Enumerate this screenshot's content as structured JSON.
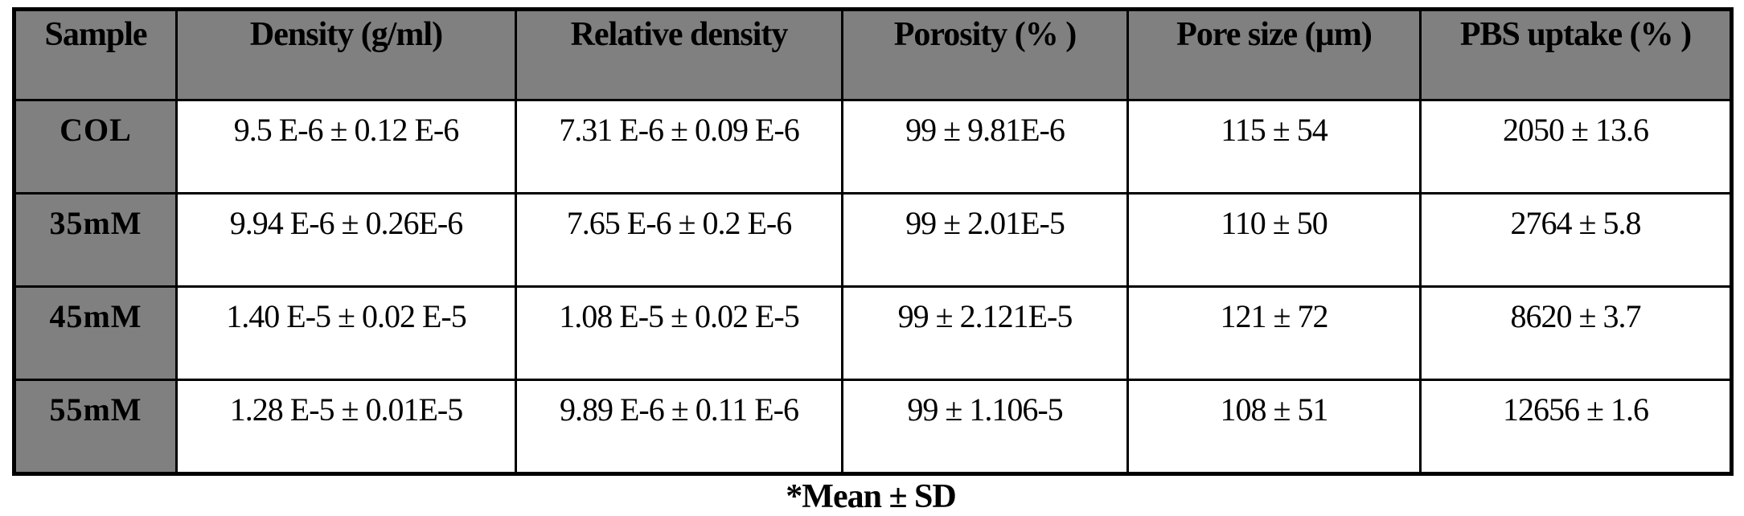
{
  "table": {
    "columns": [
      "Sample",
      "Density (g/ml)",
      "Relative density",
      "Porosity (% )",
      "Pore size (µm)",
      "PBS uptake (% )"
    ],
    "rows": [
      {
        "sample": "COL",
        "cells": [
          "9.5 E-6 ± 0.12 E-6",
          "7.31 E-6 ± 0.09 E-6",
          "99 ± 9.81E-6",
          "115 ± 54",
          "2050 ± 13.6"
        ]
      },
      {
        "sample": "35mM",
        "cells": [
          "9.94 E-6 ± 0.26E-6",
          "7.65 E-6 ± 0.2 E-6",
          "99 ± 2.01E-5",
          "110 ± 50",
          "2764 ± 5.8"
        ]
      },
      {
        "sample": "45mM",
        "cells": [
          "1.40 E-5 ± 0.02 E-5",
          "1.08 E-5 ± 0.02 E-5",
          "99 ± 2.121E-5",
          "121 ± 72",
          "8620 ± 3.7"
        ]
      },
      {
        "sample": "55mM",
        "cells": [
          "1.28 E-5 ± 0.01E-5",
          "9.89 E-6 ± 0.11 E-6",
          "99 ± 1.106-5",
          "108 ± 51",
          "12656 ± 1.6"
        ]
      }
    ],
    "footnote": "*Mean ± SD",
    "colors": {
      "header_bg": "#808080",
      "sample_col_bg": "#808080",
      "cell_bg": "#ffffff",
      "border": "#000000",
      "text": "#000000"
    }
  }
}
